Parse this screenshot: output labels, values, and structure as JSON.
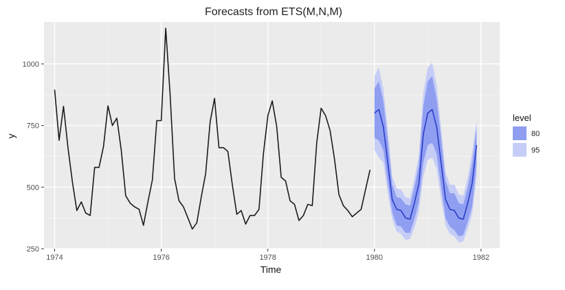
{
  "chart_data": {
    "type": "line",
    "title": "Forecasts from ETS(M,N,M)",
    "xlabel": "Time",
    "ylabel": "y",
    "xlim": [
      1973.8,
      1982.35
    ],
    "ylim": [
      250,
      1170
    ],
    "x_ticks": [
      1974,
      1976,
      1978,
      1980,
      1982
    ],
    "x_tick_labels": [
      "1974",
      "1976",
      "1978",
      "1980",
      "1982"
    ],
    "y_ticks": [
      250,
      500,
      750,
      1000
    ],
    "y_tick_labels": [
      "250",
      "500",
      "750",
      "1000"
    ],
    "grid": true,
    "legend_position": "right",
    "legend": {
      "title": "level",
      "items": [
        {
          "label": "80",
          "color": "#8f9ef0"
        },
        {
          "label": "95",
          "color": "#c5cdf7"
        }
      ]
    },
    "colors": {
      "panel_background": "#ebebeb",
      "grid_major": "#ffffff",
      "observed_line": "#1a1a1a",
      "forecast_line": "#2b3ec9",
      "band_80": "#8f9ef0",
      "band_95": "#c5cdf7"
    },
    "series": [
      {
        "kind": "observed",
        "start": 1974.0,
        "frequency": 12,
        "values": [
          895,
          690,
          828,
          660,
          520,
          405,
          440,
          395,
          385,
          580,
          580,
          665,
          830,
          750,
          780,
          650,
          465,
          435,
          420,
          410,
          345,
          440,
          530,
          770,
          770,
          1145,
          875,
          535,
          445,
          420,
          375,
          330,
          355,
          460,
          555,
          765,
          860,
          660,
          660,
          645,
          510,
          390,
          405,
          350,
          385,
          385,
          410,
          635,
          790,
          850,
          745,
          540,
          525,
          445,
          430,
          365,
          385,
          430,
          425,
          680,
          820,
          790,
          730,
          615,
          470,
          425,
          405,
          380,
          395,
          410,
          490,
          570
        ]
      },
      {
        "kind": "forecast",
        "start": 1980.0,
        "frequency": 12,
        "values": [
          800,
          815,
          745,
          600,
          450,
          410,
          405,
          375,
          370,
          435,
          515,
          715,
          800,
          815,
          745,
          600,
          450,
          410,
          405,
          375,
          370,
          435,
          515,
          670
        ],
        "lower_80": [
          700,
          690,
          650,
          520,
          400,
          345,
          340,
          315,
          315,
          370,
          440,
          600,
          670,
          680,
          635,
          500,
          375,
          340,
          325,
          300,
          305,
          360,
          420,
          590
        ],
        "upper_80": [
          900,
          930,
          850,
          690,
          510,
          460,
          455,
          430,
          425,
          500,
          590,
          830,
          930,
          950,
          860,
          700,
          525,
          475,
          475,
          435,
          430,
          500,
          595,
          740
        ],
        "lower_95": [
          650,
          620,
          600,
          475,
          370,
          320,
          310,
          285,
          290,
          335,
          400,
          545,
          610,
          620,
          575,
          455,
          345,
          310,
          300,
          275,
          280,
          330,
          390,
          545
        ],
        "upper_95": [
          950,
          985,
          900,
          735,
          545,
          495,
          490,
          460,
          455,
          535,
          630,
          885,
          985,
          1005,
          915,
          745,
          560,
          510,
          510,
          470,
          465,
          540,
          640,
          775
        ]
      }
    ]
  }
}
